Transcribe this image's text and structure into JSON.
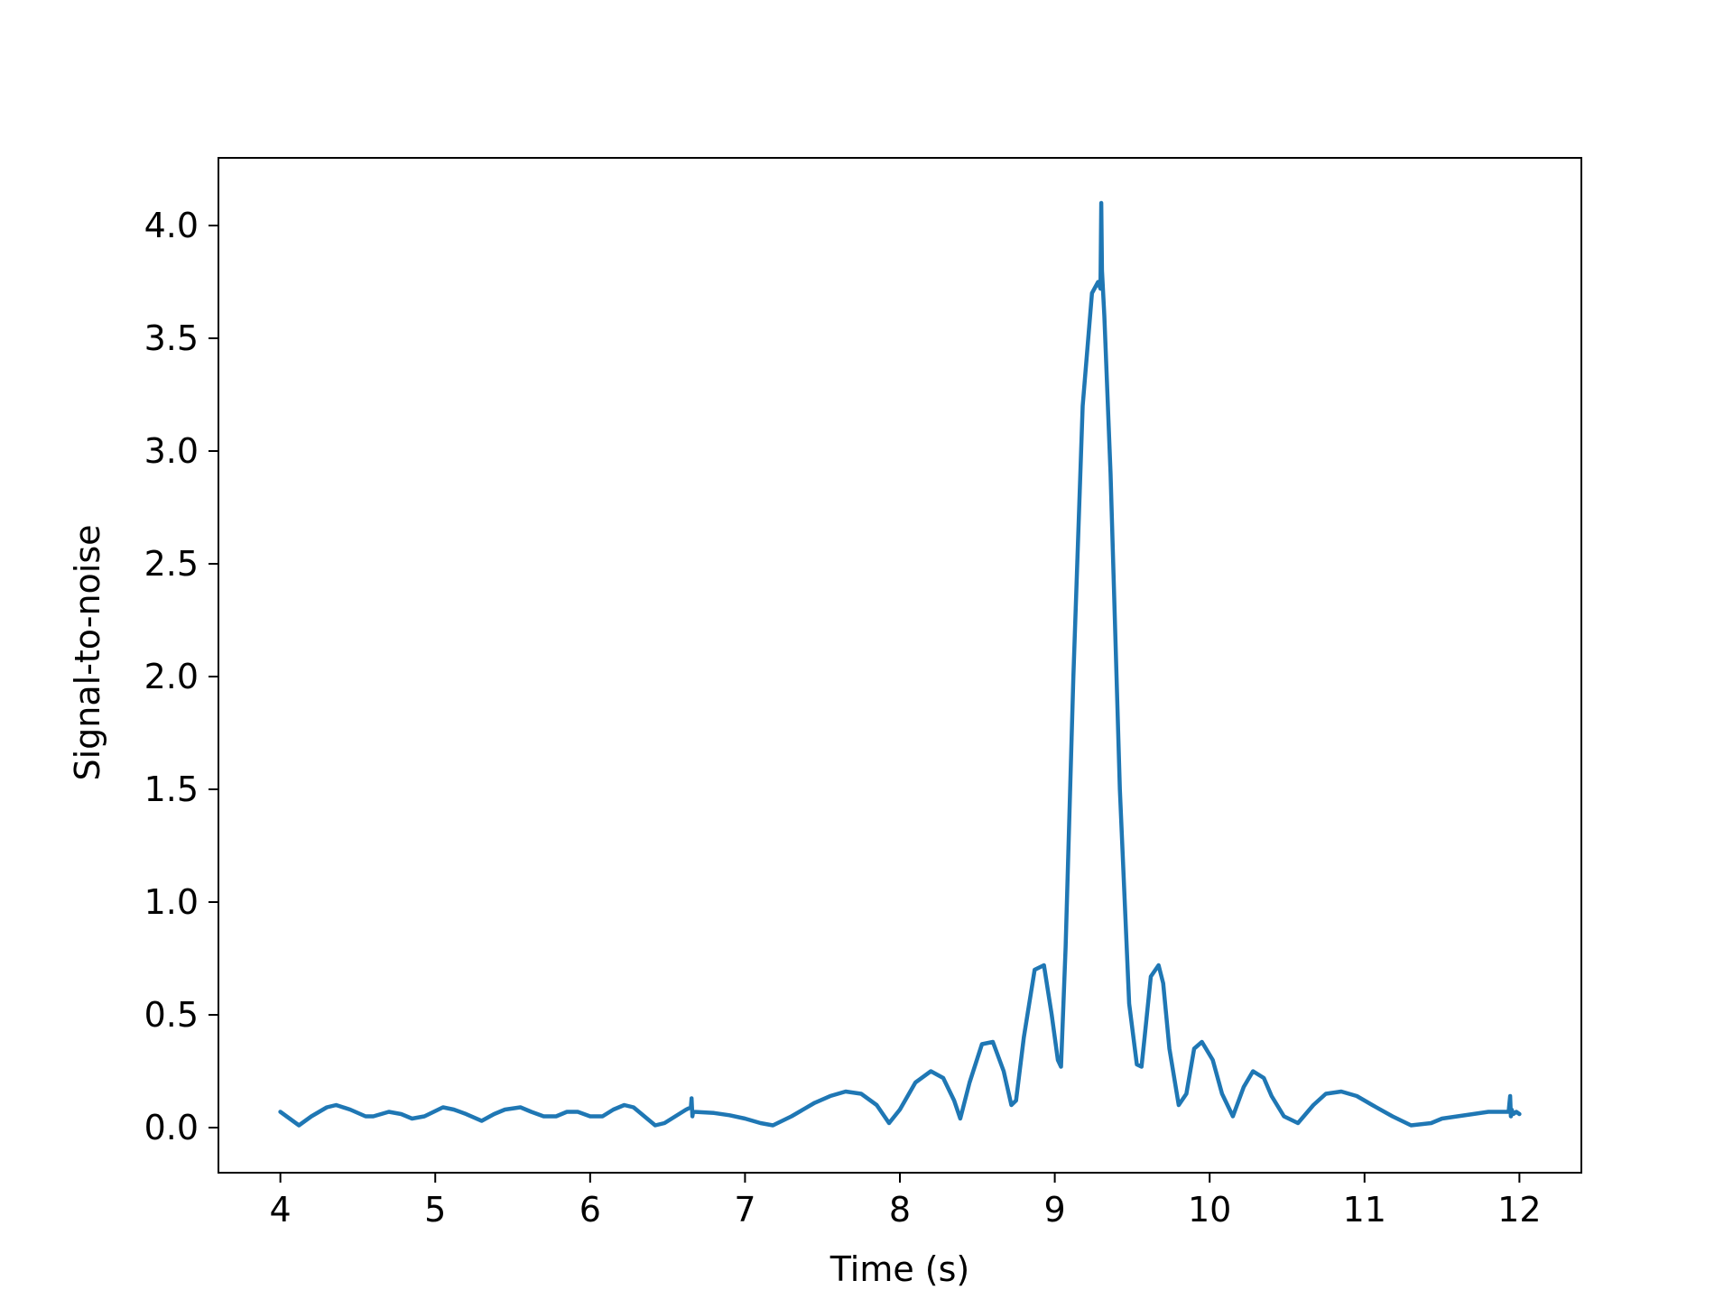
{
  "chart_data": {
    "type": "line",
    "title": "",
    "xlabel": "Time (s)",
    "ylabel": "Signal-to-noise",
    "xlim": [
      3.6,
      12.4
    ],
    "ylim": [
      -0.2,
      4.3
    ],
    "xticks": [
      4,
      5,
      6,
      7,
      8,
      9,
      10,
      11,
      12
    ],
    "xtick_labels": [
      "4",
      "5",
      "6",
      "7",
      "8",
      "9",
      "10",
      "11",
      "12"
    ],
    "yticks": [
      0.0,
      0.5,
      1.0,
      1.5,
      2.0,
      2.5,
      3.0,
      3.5,
      4.0
    ],
    "ytick_labels": [
      "0.0",
      "0.5",
      "1.0",
      "1.5",
      "2.0",
      "2.5",
      "3.0",
      "3.5",
      "4.0"
    ],
    "grid": false,
    "legend": "none",
    "line_color": "#1f77b4",
    "series": [
      {
        "x": [
          4.0,
          4.06,
          4.12,
          4.2,
          4.3,
          4.36,
          4.45,
          4.55,
          4.6,
          4.7,
          4.78,
          4.85,
          4.93,
          5.05,
          5.12,
          5.2,
          5.3,
          5.38,
          5.45,
          5.55,
          5.62,
          5.7,
          5.78,
          5.85,
          5.92,
          6.0,
          6.08,
          6.15,
          6.22,
          6.28,
          6.35,
          6.42,
          6.48,
          6.55,
          6.62,
          6.65,
          6.655,
          6.66,
          6.665,
          6.67,
          6.8,
          6.9,
          7.0,
          7.1,
          7.18,
          7.3,
          7.45,
          7.55,
          7.65,
          7.75,
          7.85,
          7.93,
          8.0,
          8.1,
          8.2,
          8.28,
          8.35,
          8.39,
          8.45,
          8.53,
          8.6,
          8.67,
          8.72,
          8.75,
          8.8,
          8.87,
          8.93,
          8.98,
          9.02,
          9.04,
          9.07,
          9.12,
          9.18,
          9.24,
          9.28,
          9.295,
          9.3,
          9.305,
          9.32,
          9.36,
          9.42,
          9.48,
          9.53,
          9.56,
          9.58,
          9.62,
          9.67,
          9.7,
          9.74,
          9.8,
          9.85,
          9.9,
          9.95,
          10.02,
          10.08,
          10.15,
          10.22,
          10.28,
          10.35,
          10.4,
          10.48,
          10.57,
          10.67,
          10.75,
          10.85,
          10.95,
          11.05,
          11.18,
          11.3,
          11.43,
          11.5,
          11.6,
          11.7,
          11.8,
          11.9,
          11.93,
          11.94,
          11.945,
          11.95,
          11.96,
          11.98,
          12.0
        ],
        "y": [
          0.07,
          0.04,
          0.01,
          0.05,
          0.09,
          0.1,
          0.08,
          0.05,
          0.05,
          0.07,
          0.06,
          0.04,
          0.05,
          0.09,
          0.08,
          0.06,
          0.03,
          0.06,
          0.08,
          0.09,
          0.07,
          0.05,
          0.05,
          0.07,
          0.07,
          0.05,
          0.05,
          0.08,
          0.1,
          0.09,
          0.05,
          0.01,
          0.02,
          0.05,
          0.08,
          0.09,
          0.13,
          0.05,
          0.07,
          0.07,
          0.065,
          0.055,
          0.04,
          0.02,
          0.01,
          0.05,
          0.11,
          0.14,
          0.16,
          0.15,
          0.1,
          0.02,
          0.08,
          0.2,
          0.25,
          0.22,
          0.12,
          0.04,
          0.2,
          0.37,
          0.38,
          0.25,
          0.1,
          0.12,
          0.4,
          0.7,
          0.72,
          0.5,
          0.3,
          0.27,
          0.8,
          2.0,
          3.2,
          3.7,
          3.75,
          3.72,
          4.1,
          3.8,
          3.6,
          2.9,
          1.5,
          0.55,
          0.28,
          0.27,
          0.4,
          0.67,
          0.72,
          0.64,
          0.35,
          0.1,
          0.15,
          0.35,
          0.38,
          0.3,
          0.15,
          0.05,
          0.18,
          0.25,
          0.22,
          0.14,
          0.05,
          0.02,
          0.1,
          0.15,
          0.16,
          0.14,
          0.1,
          0.05,
          0.01,
          0.02,
          0.04,
          0.05,
          0.06,
          0.07,
          0.07,
          0.07,
          0.14,
          0.05,
          0.08,
          0.06,
          0.07,
          0.06
        ]
      }
    ]
  }
}
